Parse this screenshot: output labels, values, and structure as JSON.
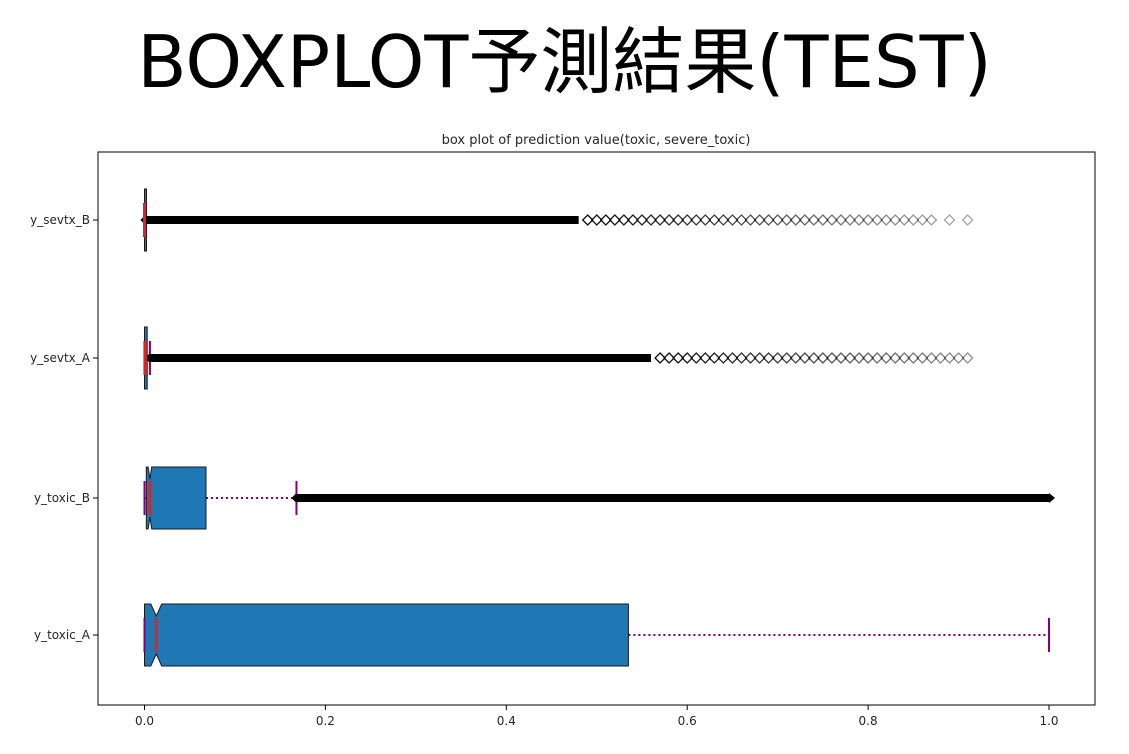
{
  "slide": {
    "title": "BOXPLOT予測結果(TEST)"
  },
  "chart_data": {
    "type": "boxplot",
    "orientation": "horizontal",
    "title": "box plot of prediction value(toxic, severe_toxic)",
    "xlabel": "",
    "ylabel": "",
    "xlim": [
      -0.05,
      1.05
    ],
    "xticks": [
      "0.0",
      "0.2",
      "0.4",
      "0.6",
      "0.8",
      "1.0"
    ],
    "grid": false,
    "notched": true,
    "colors": {
      "box_fill": "#1f77b4",
      "box_edge": "#1a1a1a",
      "median": "#d62728",
      "whisker": "#800080",
      "flier": "#000000"
    },
    "categories": [
      "y_toxic_A",
      "y_toxic_B",
      "y_sevtx_A",
      "y_sevtx_B"
    ],
    "series": [
      {
        "label": "y_toxic_A",
        "whislo": 0.0,
        "q1": 0.0,
        "med": 0.013,
        "q3": 0.535,
        "whishi": 1.0,
        "notch_lo": 0.007,
        "notch_hi": 0.019,
        "fliers": []
      },
      {
        "label": "y_toxic_B",
        "whislo": 0.0,
        "q1": 0.002,
        "med": 0.006,
        "q3": 0.068,
        "whishi": 0.168,
        "notch_lo": 0.004,
        "notch_hi": 0.008,
        "fliers_dense_range": [
          0.168,
          1.0
        ],
        "fliers": []
      },
      {
        "label": "y_sevtx_A",
        "whislo": 0.0,
        "q1": 0.0,
        "med": 0.001,
        "q3": 0.003,
        "whishi": 0.006,
        "notch_lo": 0.0009,
        "notch_hi": 0.0012,
        "fliers_dense_range": [
          0.006,
          0.56
        ],
        "fliers": [
          0.57,
          0.58,
          0.59,
          0.6,
          0.61,
          0.62,
          0.63,
          0.64,
          0.65,
          0.66,
          0.67,
          0.68,
          0.69,
          0.7,
          0.71,
          0.72,
          0.73,
          0.74,
          0.75,
          0.76,
          0.77,
          0.78,
          0.79,
          0.8,
          0.81,
          0.82,
          0.83,
          0.84,
          0.85,
          0.86,
          0.87,
          0.88,
          0.89,
          0.9,
          0.91
        ]
      },
      {
        "label": "y_sevtx_B",
        "whislo": 0.0,
        "q1": 0.0,
        "med": 0.0,
        "q3": 0.0008,
        "whishi": 0.001,
        "notch_lo": 0.0,
        "notch_hi": 0.0005,
        "fliers_dense_range": [
          0.001,
          0.48
        ],
        "fliers": [
          0.49,
          0.5,
          0.51,
          0.52,
          0.53,
          0.54,
          0.55,
          0.56,
          0.57,
          0.58,
          0.59,
          0.6,
          0.61,
          0.62,
          0.63,
          0.64,
          0.65,
          0.66,
          0.67,
          0.68,
          0.69,
          0.7,
          0.71,
          0.72,
          0.73,
          0.74,
          0.75,
          0.76,
          0.77,
          0.78,
          0.79,
          0.8,
          0.81,
          0.82,
          0.83,
          0.84,
          0.85,
          0.86,
          0.87,
          0.89,
          0.91
        ]
      }
    ]
  }
}
